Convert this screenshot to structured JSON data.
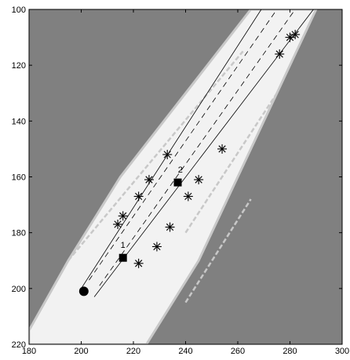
{
  "chart_data": {
    "type": "scatter",
    "title": "",
    "xlabel": "",
    "ylabel": "",
    "xlim": [
      180,
      300
    ],
    "ylim": [
      100,
      220
    ],
    "y_axis_inverted": true,
    "grid": false,
    "legend": "none",
    "x_ticks": [
      "180",
      "200",
      "220",
      "240",
      "260",
      "280",
      "300"
    ],
    "y_ticks": [
      "100",
      "120",
      "140",
      "160",
      "180",
      "200",
      "220"
    ],
    "colors": {
      "background": "#808080",
      "road": "#f2f2f2",
      "road_edge": "#c8c8c8",
      "marker": "#000000"
    },
    "road_polygon": [
      [
        180,
        215
      ],
      [
        195,
        190
      ],
      [
        215,
        160
      ],
      [
        240,
        130
      ],
      [
        265,
        100
      ],
      [
        290,
        100
      ],
      [
        270,
        140
      ],
      [
        245,
        190
      ],
      [
        225,
        220
      ],
      [
        180,
        220
      ]
    ],
    "streaks": [
      {
        "x1": 195,
        "y1": 190,
        "x2": 262,
        "y2": 115
      },
      {
        "x1": 240,
        "y1": 180,
        "x2": 275,
        "y2": 130
      },
      {
        "x1": 240,
        "y1": 205,
        "x2": 265,
        "y2": 168
      }
    ],
    "solid_lines": [
      {
        "x1": 200,
        "y1": 200,
        "x2": 269,
        "y2": 100
      },
      {
        "x1": 205,
        "y1": 203,
        "x2": 289,
        "y2": 100
      }
    ],
    "dashed_lines": [
      {
        "x1": 203,
        "y1": 197,
        "x2": 275,
        "y2": 100
      },
      {
        "x1": 207,
        "y1": 199,
        "x2": 282,
        "y2": 100
      }
    ],
    "series": [
      {
        "marker": "asterisk",
        "points": [
          [
            233,
            152
          ],
          [
            226,
            161
          ],
          [
            222,
            167
          ],
          [
            216,
            174
          ],
          [
            214,
            177
          ],
          [
            254,
            150
          ],
          [
            245,
            161
          ],
          [
            241,
            167
          ],
          [
            234,
            178
          ],
          [
            229,
            185
          ],
          [
            222,
            191
          ],
          [
            276,
            116
          ],
          [
            280,
            110
          ],
          [
            282,
            109
          ]
        ]
      },
      {
        "marker": "square",
        "points": [
          [
            216,
            189
          ],
          [
            237,
            162
          ]
        ]
      },
      {
        "marker": "circle",
        "points": [
          [
            201,
            201
          ]
        ]
      }
    ],
    "point_labels": [
      {
        "text": "1",
        "x": 216,
        "y": 185.5
      },
      {
        "text": "2",
        "x": 238,
        "y": 158.5
      }
    ]
  }
}
